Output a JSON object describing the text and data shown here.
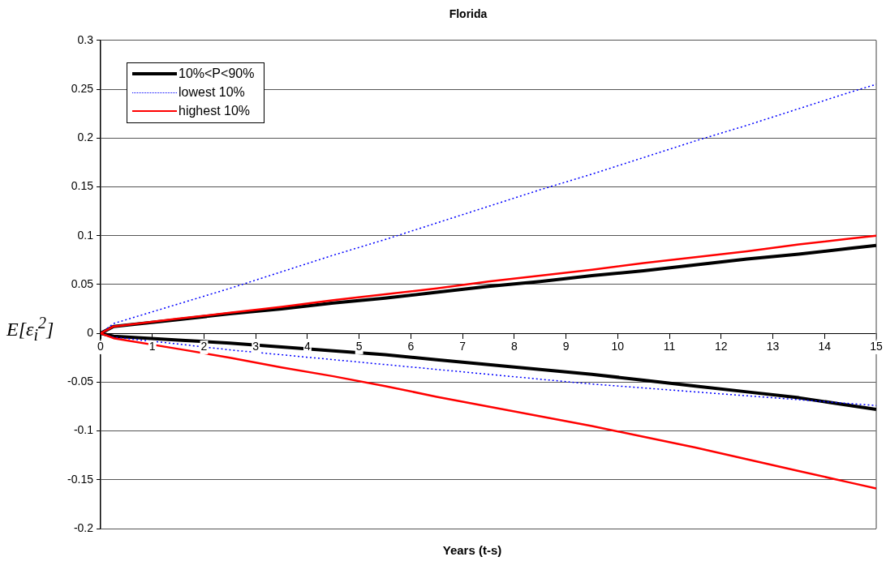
{
  "chart_data": {
    "type": "line",
    "title": "Florida",
    "xlabel": "Years (t-s)",
    "ylabel": "E[ε$_{i}$$^{2}$]",
    "x": [
      0,
      0.25,
      1.5,
      2.5,
      3.5,
      4.5,
      5.5,
      6.5,
      7.5,
      8.5,
      9.5,
      10.5,
      11.5,
      12.5,
      13.5,
      14.5,
      15
    ],
    "xlim": [
      0,
      15
    ],
    "xticks": [
      0,
      1,
      2,
      3,
      4,
      5,
      6,
      7,
      8,
      9,
      10,
      11,
      12,
      13,
      14,
      15
    ],
    "ylim": [
      -0.2,
      0.3
    ],
    "yticks": [
      -0.2,
      -0.15,
      -0.1,
      -0.05,
      0,
      0.05,
      0.1,
      0.15,
      0.2,
      0.25,
      0.3
    ],
    "grid": "y",
    "legend": "top left",
    "marker": "none",
    "series": [
      {
        "name": "10%<P<90%",
        "color": "#000000",
        "line_style": "solid",
        "values": [
          0,
          0.007,
          0.014,
          0.02,
          0.025,
          0.031,
          0.036,
          0.042,
          0.048,
          0.053,
          0.059,
          0.064,
          0.07,
          0.076,
          0.081,
          0.087,
          0.09
        ]
      },
      {
        "color": "#000000",
        "line_style": "solid",
        "values": [
          0,
          -0.003,
          -0.007,
          -0.01,
          -0.014,
          -0.018,
          -0.022,
          -0.027,
          -0.032,
          -0.037,
          -0.042,
          -0.048,
          -0.054,
          -0.06,
          -0.066,
          -0.074,
          -0.078
        ]
      },
      {
        "name": "lowest 10%",
        "color": "#0000ff",
        "line_style": "dotted",
        "values": [
          0,
          0.01,
          0.03,
          0.046,
          0.063,
          0.08,
          0.096,
          0.113,
          0.13,
          0.147,
          0.163,
          0.18,
          0.197,
          0.213,
          0.23,
          0.247,
          0.255
        ]
      },
      {
        "color": "#0000ff",
        "line_style": "dotted",
        "values": [
          0,
          -0.004,
          -0.011,
          -0.017,
          -0.022,
          -0.027,
          -0.032,
          -0.037,
          -0.042,
          -0.047,
          -0.052,
          -0.056,
          -0.06,
          -0.064,
          -0.068,
          -0.072,
          -0.074
        ]
      },
      {
        "name": "highest 10%",
        "color": "#ff0000",
        "line_style": "solid",
        "values": [
          0,
          0.007,
          0.015,
          0.021,
          0.027,
          0.034,
          0.04,
          0.046,
          0.053,
          0.059,
          0.065,
          0.072,
          0.078,
          0.084,
          0.091,
          0.097,
          0.1
        ]
      },
      {
        "color": "#ff0000",
        "line_style": "solid",
        "values": [
          0,
          -0.005,
          -0.016,
          -0.025,
          -0.035,
          -0.044,
          -0.054,
          -0.065,
          -0.075,
          -0.085,
          -0.095,
          -0.106,
          -0.117,
          -0.129,
          -0.141,
          -0.153,
          -0.159
        ]
      }
    ]
  }
}
